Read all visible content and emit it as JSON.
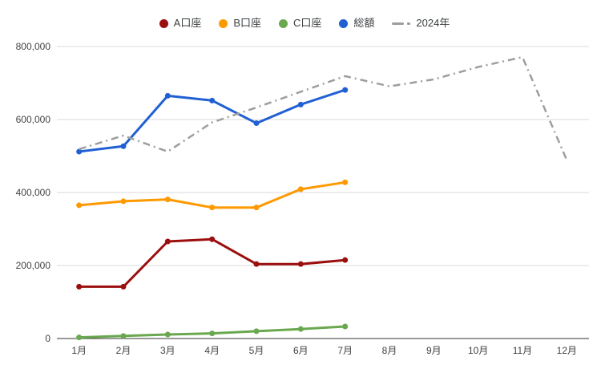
{
  "chart_data": {
    "type": "line",
    "title": "",
    "categories": [
      "1月",
      "2月",
      "3月",
      "4月",
      "5月",
      "6月",
      "7月",
      "8月",
      "9月",
      "10月",
      "11月",
      "12月"
    ],
    "series": [
      {
        "id": "account-a",
        "name": "A口座",
        "color": "#9c0f0f",
        "line_style": "solid",
        "markers": true,
        "values": [
          142000,
          142000,
          266000,
          272000,
          204000,
          204000,
          215000,
          null,
          null,
          null,
          null,
          null
        ]
      },
      {
        "id": "account-b",
        "name": "B口座",
        "color": "#ff9900",
        "line_style": "solid",
        "markers": true,
        "values": [
          365000,
          376000,
          381000,
          359000,
          359000,
          409000,
          428000,
          null,
          null,
          null,
          null,
          null
        ]
      },
      {
        "id": "account-c",
        "name": "C口座",
        "color": "#6aa84f",
        "line_style": "solid",
        "markers": true,
        "values": [
          3000,
          7000,
          11000,
          14000,
          20000,
          26000,
          33000,
          null,
          null,
          null,
          null,
          null
        ]
      },
      {
        "id": "total",
        "name": "総額",
        "color": "#2160d3",
        "line_style": "solid",
        "markers": true,
        "values": [
          512000,
          527000,
          665000,
          652000,
          590000,
          641000,
          681000,
          null,
          null,
          null,
          null,
          null
        ]
      },
      {
        "id": "year-2024",
        "name": "2024年",
        "color": "#9e9e9e",
        "line_style": "dash-dot",
        "markers": false,
        "values": [
          519000,
          556000,
          512000,
          592000,
          633000,
          676000,
          719000,
          691000,
          710000,
          744000,
          771000,
          489000
        ]
      }
    ],
    "ylim": [
      0,
      800000
    ],
    "yticks": [
      {
        "value": 0,
        "label": "0"
      },
      {
        "value": 200000,
        "label": "200,000"
      },
      {
        "value": 400000,
        "label": "400,000"
      },
      {
        "value": 600000,
        "label": "600,000"
      },
      {
        "value": 800000,
        "label": "800,000"
      }
    ],
    "grid": true,
    "legend_position": "top",
    "colors": {
      "background": "#ffffff",
      "grid": "#d9d9d9",
      "axis": "#333333",
      "tick_label": "#424242",
      "legend_label": "#3c4043"
    }
  }
}
